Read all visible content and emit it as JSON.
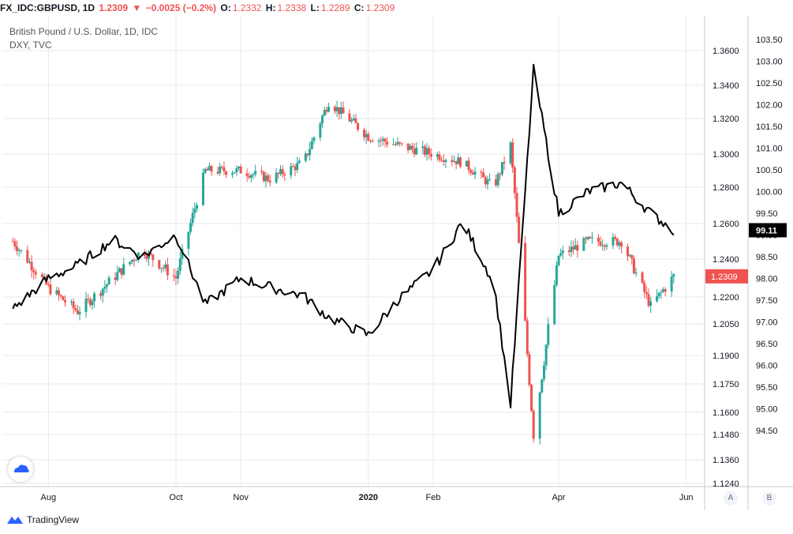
{
  "header": {
    "symbol": "FX_IDC:GBPUSD, 1D",
    "last": "1.2309",
    "change": "−0.0025 (−0.2%)",
    "o_label": "O:",
    "o": "1.2332",
    "h_label": "H:",
    "h": "1.2338",
    "l_label": "L:",
    "l": "1.2289",
    "c_label": "C:",
    "c": "1.2309"
  },
  "legend": {
    "main": "British Pound / U.S. Dollar, 1D, IDC",
    "secondary": "DXY, TVC"
  },
  "footer": {
    "brand": "TradingView",
    "axis_btn_a": "A",
    "axis_btn_b": "B"
  },
  "colors": {
    "up": "#26a69a",
    "down": "#ef5350",
    "dxy": "#000000",
    "grid": "#e6e9ef"
  },
  "chart_data": {
    "type": "line",
    "x_ticks": [
      "Aug",
      "Oct",
      "Nov",
      "2020",
      "Feb",
      "Apr",
      "Jun"
    ],
    "right_axis_1": [
      "1.3600",
      "1.3400",
      "1.3200",
      "1.3000",
      "1.2800",
      "1.2600",
      "1.2400",
      "1.2200",
      "1.2050",
      "1.1900",
      "1.1750",
      "1.1600",
      "1.1480",
      "1.1360",
      "1.1240"
    ],
    "right_axis_2": [
      "103.50",
      "103.00",
      "102.50",
      "102.00",
      "101.50",
      "101.00",
      "100.50",
      "100.00",
      "99.50",
      "99.00",
      "98.50",
      "98.00",
      "97.50",
      "97.00",
      "96.50",
      "96.00",
      "95.50",
      "95.00",
      "94.50"
    ],
    "gbpusd_last_label": "1.2309",
    "dxy_last_label": "99.11",
    "series": [
      {
        "name": "British Pound / U.S. Dollar, 1D, IDC",
        "x": [
          "2019-07-15",
          "2019-08-01",
          "2019-08-15",
          "2019-09-01",
          "2019-09-15",
          "2019-10-01",
          "2019-10-15",
          "2019-11-01",
          "2019-11-15",
          "2019-12-01",
          "2019-12-13",
          "2020-01-01",
          "2020-01-15",
          "2020-02-01",
          "2020-02-15",
          "2020-03-01",
          "2020-03-09",
          "2020-03-20",
          "2020-04-01",
          "2020-04-15",
          "2020-05-01",
          "2020-05-15",
          "2020-05-26"
        ],
        "values": [
          1.25,
          1.225,
          1.212,
          1.23,
          1.245,
          1.23,
          1.29,
          1.29,
          1.285,
          1.295,
          1.33,
          1.31,
          1.305,
          1.3,
          1.295,
          1.28,
          1.305,
          1.148,
          1.242,
          1.25,
          1.25,
          1.215,
          1.2309
        ]
      },
      {
        "name": "DXY, TVC",
        "x": [
          "2019-07-15",
          "2019-08-01",
          "2019-08-15",
          "2019-09-01",
          "2019-09-15",
          "2019-10-01",
          "2019-10-15",
          "2019-11-01",
          "2019-11-15",
          "2019-12-01",
          "2019-12-13",
          "2020-01-01",
          "2020-01-15",
          "2020-02-01",
          "2020-02-15",
          "2020-03-01",
          "2020-03-09",
          "2020-03-20",
          "2020-04-01",
          "2020-04-15",
          "2020-05-01",
          "2020-05-15",
          "2020-05-26"
        ],
        "values": [
          97.3,
          98.0,
          98.3,
          98.9,
          98.5,
          99.0,
          97.4,
          98.0,
          97.8,
          97.6,
          97.1,
          96.7,
          97.5,
          98.2,
          99.3,
          97.9,
          95.1,
          102.8,
          99.5,
          100.0,
          100.2,
          99.5,
          99.11
        ]
      }
    ]
  }
}
